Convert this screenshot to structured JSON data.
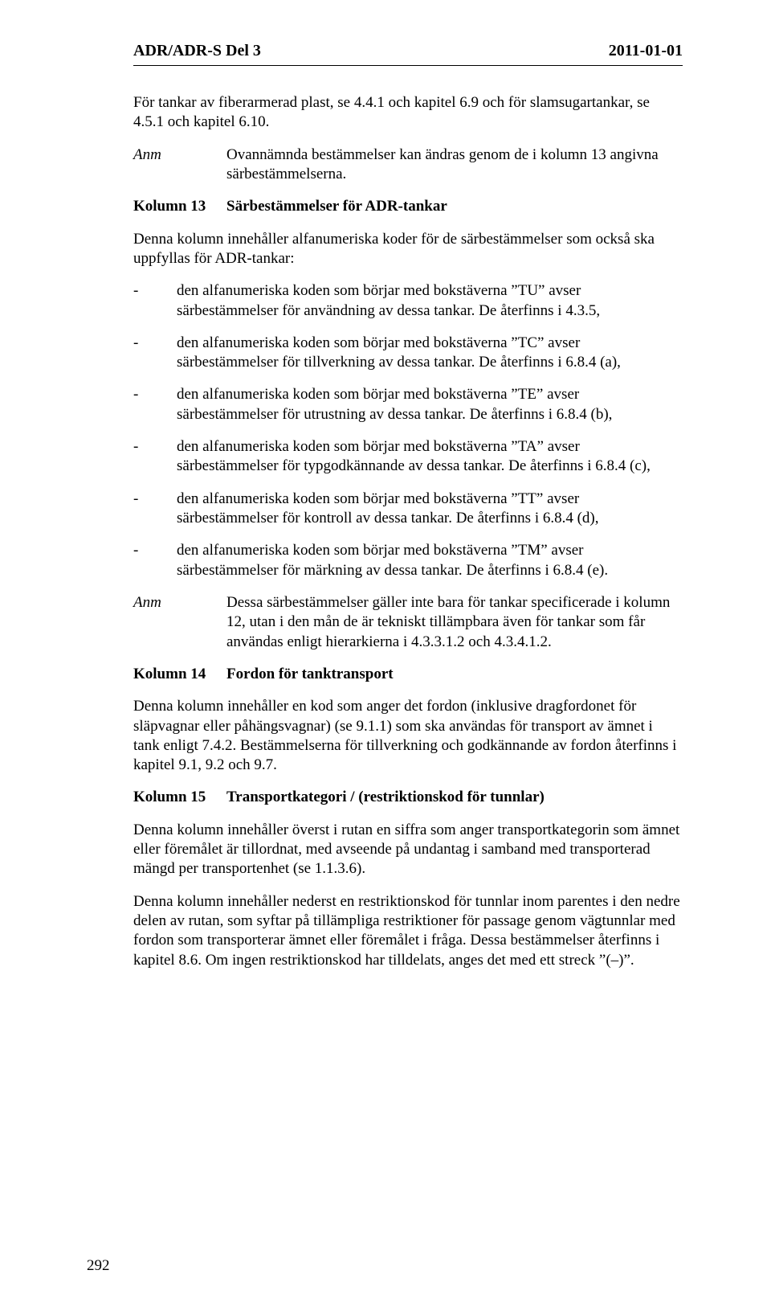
{
  "header": {
    "left": "ADR/ADR-S Del 3",
    "right": "2011-01-01"
  },
  "intro1": "För tankar av fiberarmerad plast, se 4.4.1 och kapitel 6.9 och för slamsugartankar, se 4.5.1 och kapitel 6.10.",
  "anm1": {
    "label": "Anm",
    "text": "Ovannämnda bestämmelser kan ändras genom de i kolumn 13 angivna särbestämmelserna."
  },
  "k13": {
    "label": "Kolumn 13",
    "title": "Särbestämmelser för ADR-tankar"
  },
  "k13_intro": "Denna kolumn innehåller alfanumeriska koder för de särbestämmelser som också ska uppfyllas för ADR-tankar:",
  "bullets": [
    "den alfanumeriska koden som börjar med bokstäverna ”TU” avser särbestämmelser för användning av dessa tankar. De återfinns i 4.3.5,",
    "den alfanumeriska koden som börjar med bokstäverna ”TC” avser särbestämmelser för tillverkning av dessa tankar. De återfinns i 6.8.4 (a),",
    "den alfanumeriska koden som börjar med bokstäverna ”TE” avser särbestämmelser för utrustning av dessa tankar. De återfinns i 6.8.4 (b),",
    "den alfanumeriska koden som börjar med bokstäverna ”TA” avser särbestämmelser för typgodkännande av dessa tankar. De återfinns i 6.8.4 (c),",
    "den alfanumeriska koden som börjar med bokstäverna ”TT” avser särbestämmelser för kontroll av dessa tankar. De återfinns i 6.8.4 (d),",
    "den alfanumeriska koden som börjar med bokstäverna ”TM” avser särbestämmelser för märkning av dessa tankar. De återfinns i 6.8.4 (e)."
  ],
  "anm2": {
    "label": "Anm",
    "text": "Dessa särbestämmelser gäller inte bara för tankar specificerade i kolumn 12, utan i den mån de är tekniskt tillämpbara även för tankar som får användas enligt hierarkierna i 4.3.3.1.2 och 4.3.4.1.2."
  },
  "k14": {
    "label": "Kolumn 14",
    "title": "Fordon för tanktransport"
  },
  "k14_text": "Denna kolumn innehåller en kod som anger det fordon (inklusive dragfordonet för släpvagnar eller påhängsvagnar) (se 9.1.1) som ska användas för transport av ämnet i tank enligt 7.4.2. Bestämmelserna för tillverkning och godkännande av fordon återfinns i kapitel 9.1, 9.2 och 9.7.",
  "k15": {
    "label": "Kolumn 15",
    "title": "Transportkategori / (restriktionskod för tunnlar)"
  },
  "k15_text1": "Denna kolumn innehåller överst i rutan en siffra som anger transportkategorin som ämnet eller föremålet är tillordnat, med avseende på undantag i samband med transporterad mängd per transportenhet (se 1.1.3.6).",
  "k15_text2": "Denna kolumn innehåller nederst en restriktionskod för tunnlar inom parentes i den nedre delen av rutan, som syftar på tillämpliga restriktioner för passage genom vägtunnlar med fordon som transporterar ämnet eller föremålet i fråga. Dessa bestämmelser återfinns i kapitel 8.6. Om ingen restriktionskod har tilldelats, anges det med ett streck ”(–)”.",
  "page_number": "292"
}
